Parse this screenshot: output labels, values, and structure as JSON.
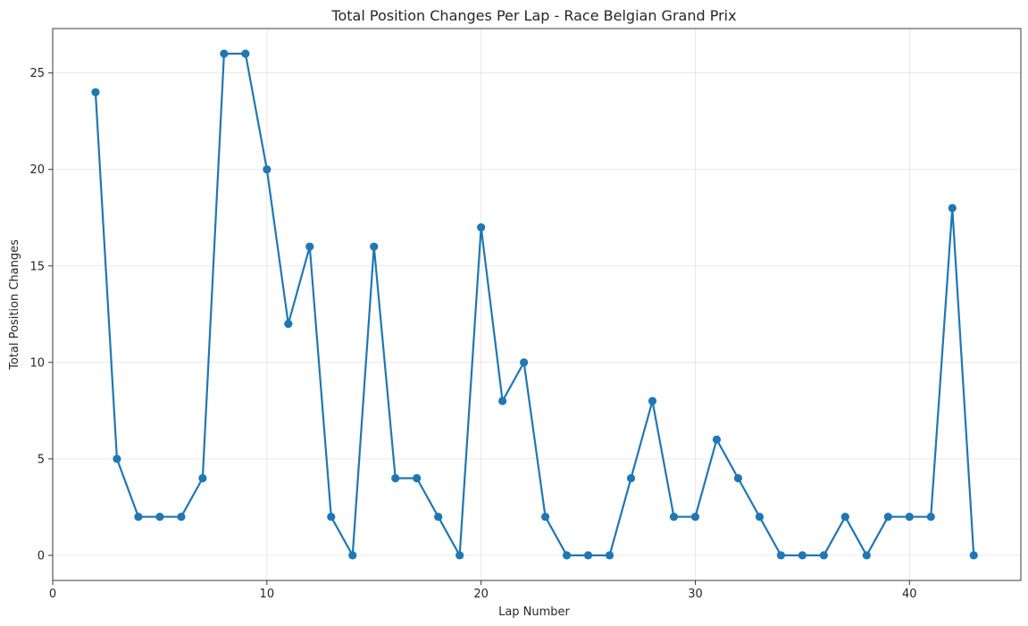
{
  "chart_data": {
    "type": "line",
    "title": "Total Position Changes Per Lap - Race Belgian Grand Prix",
    "xlabel": "Lap Number",
    "ylabel": "Total Position Changes",
    "xlim": [
      0,
      45.2
    ],
    "ylim": [
      -1.3,
      27.3
    ],
    "xticks": [
      0,
      10,
      20,
      30,
      40
    ],
    "yticks": [
      0,
      5,
      10,
      15,
      20,
      25
    ],
    "grid": true,
    "line_color": "#1f77b4",
    "series": [
      {
        "x": [
          2,
          3,
          4,
          5,
          6,
          7,
          8,
          9,
          10,
          11,
          12,
          13,
          14,
          15,
          16,
          17,
          18,
          19,
          20,
          21,
          22,
          23,
          24,
          25,
          26,
          27,
          28,
          29,
          30,
          31,
          32,
          33,
          34,
          35,
          36,
          37,
          38,
          39,
          40,
          41,
          42,
          43
        ],
        "values": [
          24,
          5,
          2,
          2,
          2,
          4,
          26,
          26,
          20,
          12,
          16,
          2,
          0,
          16,
          4,
          4,
          2,
          0,
          17,
          8,
          10,
          2,
          0,
          0,
          0,
          4,
          8,
          2,
          2,
          6,
          4,
          2,
          0,
          0,
          0,
          2,
          0,
          2,
          2,
          2,
          18,
          0
        ]
      }
    ]
  }
}
